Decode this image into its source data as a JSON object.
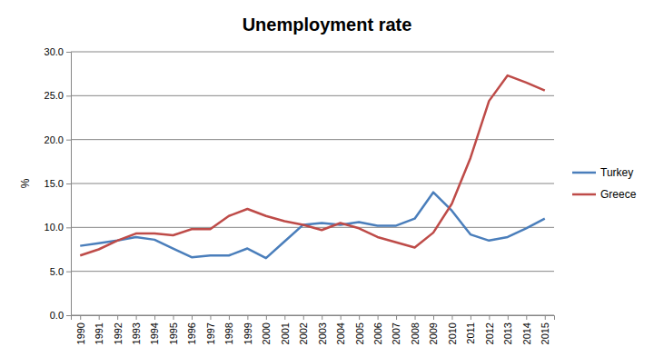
{
  "chart_data": {
    "type": "line",
    "title": "Unemployment rate",
    "y_label": "%",
    "categories": [
      "1990",
      "1991",
      "1992",
      "1993",
      "1994",
      "1995",
      "1996",
      "1997",
      "1998",
      "1999",
      "2000",
      "2001",
      "2002",
      "2003",
      "2004",
      "2005",
      "2006",
      "2007",
      "2008",
      "2009",
      "2010",
      "2011",
      "2012",
      "2013",
      "2014",
      "2015"
    ],
    "series": [
      {
        "name": "Turkey",
        "color": "#4a7ebb",
        "values": [
          7.9,
          8.2,
          8.5,
          8.9,
          8.6,
          7.6,
          6.6,
          6.8,
          6.8,
          7.6,
          6.5,
          8.4,
          10.3,
          10.5,
          10.3,
          10.6,
          10.2,
          10.2,
          11.0,
          14.0,
          11.9,
          9.2,
          8.5,
          8.9,
          9.9,
          11.0
        ]
      },
      {
        "name": "Greece",
        "color": "#be4b48",
        "values": [
          6.8,
          7.5,
          8.5,
          9.3,
          9.3,
          9.1,
          9.8,
          9.8,
          11.3,
          12.1,
          11.3,
          10.7,
          10.3,
          9.7,
          10.5,
          9.9,
          8.9,
          8.3,
          7.7,
          9.4,
          12.7,
          17.9,
          24.4,
          27.3,
          26.5,
          25.6
        ]
      }
    ],
    "ylim": [
      0,
      30
    ],
    "yticks": [
      {
        "value": 0,
        "label": "0.0"
      },
      {
        "value": 5,
        "label": "5.0"
      },
      {
        "value": 10,
        "label": "10.0"
      },
      {
        "value": 15,
        "label": "15.0"
      },
      {
        "value": 20,
        "label": "20.0"
      },
      {
        "value": 25,
        "label": "25.0"
      },
      {
        "value": 30,
        "label": "30.0"
      }
    ],
    "grid": true,
    "legend": "right"
  }
}
